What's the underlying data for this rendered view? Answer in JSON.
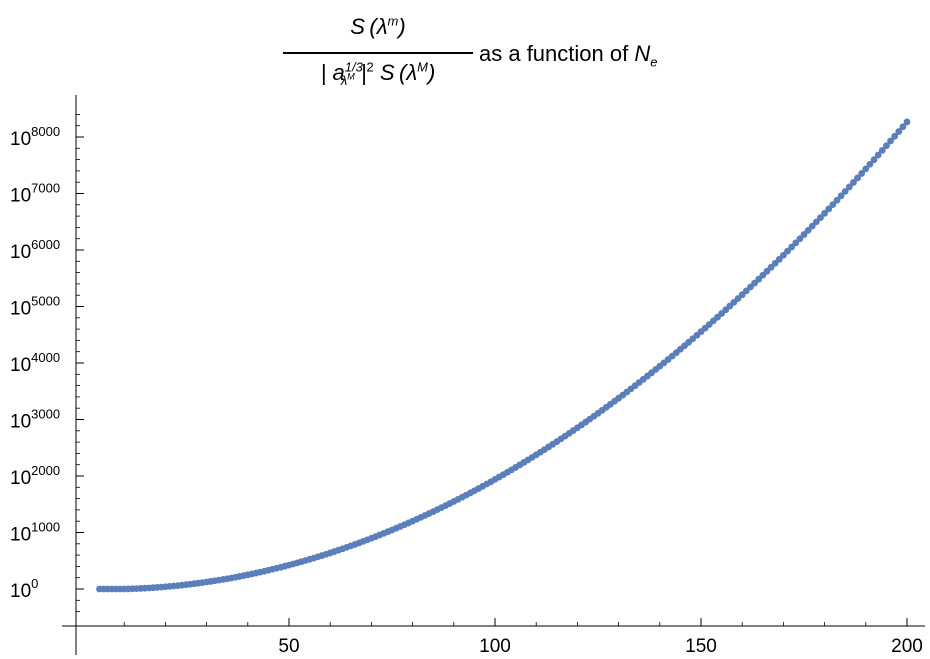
{
  "chart_data": {
    "type": "scatter",
    "title": {
      "numerator": "S(λ^m)",
      "denominator": "| a^{1/3}_{λ^M} |^2 S(λ^M)",
      "suffix_text": "as a function of",
      "suffix_var": "N",
      "suffix_var_sub": "e"
    },
    "xlabel": "",
    "ylabel": "",
    "scale_y": "log",
    "xlim": [
      0,
      205
    ],
    "ylim_exponent": [
      -600,
      8400
    ],
    "x_ticks": [
      {
        "value": 50,
        "label": "50"
      },
      {
        "value": 100,
        "label": "100"
      },
      {
        "value": 150,
        "label": "150"
      },
      {
        "value": 200,
        "label": "200"
      }
    ],
    "y_ticks": [
      {
        "exponent": 0,
        "base": "10",
        "exp_label": "0"
      },
      {
        "exponent": 1000,
        "base": "10",
        "exp_label": "1000"
      },
      {
        "exponent": 2000,
        "base": "10",
        "exp_label": "2000"
      },
      {
        "exponent": 3000,
        "base": "10",
        "exp_label": "3000"
      },
      {
        "exponent": 4000,
        "base": "10",
        "exp_label": "4000"
      },
      {
        "exponent": 5000,
        "base": "10",
        "exp_label": "5000"
      },
      {
        "exponent": 6000,
        "base": "10",
        "exp_label": "6000"
      },
      {
        "exponent": 7000,
        "base": "10",
        "exp_label": "7000"
      },
      {
        "exponent": 8000,
        "base": "10",
        "exp_label": "8000"
      }
    ],
    "series": [
      {
        "color": "#5b7fba",
        "x_start": 4,
        "x_end": 200,
        "x_step": 1,
        "log10_y_model": "a*x^2 + b*x + c",
        "log10_y_samples": [
          {
            "x": 4,
            "log10_y": 0
          },
          {
            "x": 50,
            "log10_y": 430
          },
          {
            "x": 100,
            "log10_y": 1900
          },
          {
            "x": 150,
            "log10_y": 4600
          },
          {
            "x": 200,
            "log10_y": 8250
          }
        ]
      }
    ],
    "grid": false,
    "legend": "none"
  }
}
